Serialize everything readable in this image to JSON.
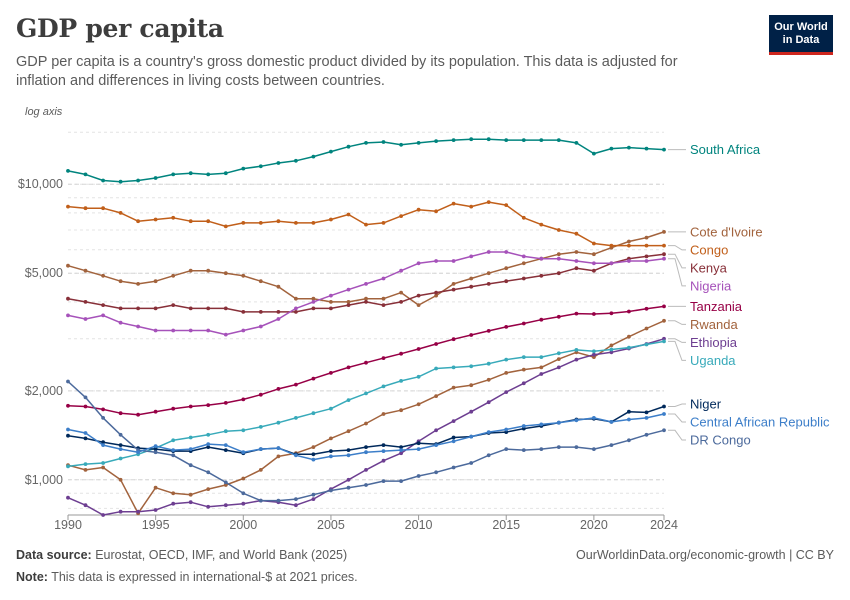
{
  "header": {
    "title": "GDP per capita",
    "subtitle": "GDP per capita is a country's gross domestic product divided by its population. This data is adjusted for inflation and differences in living costs between countries.",
    "logo_line1": "Our World",
    "logo_line2": "in Data"
  },
  "footer": {
    "source_label": "Data source:",
    "source_text": "Eurostat, OECD, IMF, and World Bank (2025)",
    "link_text": "OurWorldinData.org/economic-growth | CC BY",
    "note_label": "Note:",
    "note_text": "This data is expressed in international-$ at 2021 prices."
  },
  "chart_data": {
    "type": "line",
    "scale": "log",
    "axis_note": "log axis",
    "xlim": [
      1990,
      2024
    ],
    "ylim": [
      760,
      15500
    ],
    "x_ticks": [
      1990,
      1995,
      2000,
      2005,
      2010,
      2015,
      2020,
      2024
    ],
    "y_ticks": [
      {
        "value": 1000,
        "label": "$1,000"
      },
      {
        "value": 2000,
        "label": "$2,000"
      },
      {
        "value": 5000,
        "label": "$5,000"
      },
      {
        "value": 10000,
        "label": "$10,000"
      }
    ],
    "grid": true,
    "legend": "right",
    "series": [
      {
        "name": "South Africa",
        "color": "#00847e",
        "values": [
          11100,
          10800,
          10300,
          10200,
          10300,
          10500,
          10800,
          10900,
          10800,
          10900,
          11300,
          11500,
          11800,
          12000,
          12400,
          12900,
          13400,
          13800,
          13900,
          13600,
          13800,
          14000,
          14100,
          14200,
          14200,
          14100,
          14100,
          14100,
          14100,
          13800,
          12700,
          13200,
          13300,
          13200,
          13100
        ]
      },
      {
        "name": "Cote d'Ivoire",
        "color": "#a2633d",
        "values": [
          5300,
          5100,
          4900,
          4700,
          4600,
          4700,
          4900,
          5100,
          5100,
          5000,
          4900,
          4700,
          4500,
          4100,
          4100,
          4000,
          4000,
          4100,
          4100,
          4300,
          3900,
          4200,
          4600,
          4800,
          5000,
          5200,
          5400,
          5600,
          5800,
          5900,
          5800,
          6100,
          6400,
          6600,
          6900
        ]
      },
      {
        "name": "Congo",
        "color": "#c15f1a",
        "values": [
          8400,
          8300,
          8300,
          8000,
          7500,
          7600,
          7700,
          7500,
          7500,
          7200,
          7400,
          7400,
          7500,
          7400,
          7400,
          7600,
          7900,
          7300,
          7400,
          7800,
          8200,
          8100,
          8600,
          8400,
          8700,
          8500,
          7700,
          7300,
          7000,
          6800,
          6300,
          6200,
          6200,
          6200,
          6200
        ]
      },
      {
        "name": "Kenya",
        "color": "#883039",
        "values": [
          4100,
          4000,
          3900,
          3800,
          3800,
          3800,
          3900,
          3800,
          3800,
          3800,
          3700,
          3700,
          3700,
          3700,
          3800,
          3800,
          3900,
          4000,
          3900,
          4000,
          4200,
          4300,
          4400,
          4500,
          4600,
          4700,
          4800,
          4900,
          5000,
          5200,
          5100,
          5400,
          5600,
          5700,
          5800
        ]
      },
      {
        "name": "Nigeria",
        "color": "#a652ba",
        "values": [
          3600,
          3500,
          3600,
          3400,
          3300,
          3200,
          3200,
          3200,
          3200,
          3100,
          3200,
          3300,
          3500,
          3800,
          4000,
          4200,
          4400,
          4600,
          4800,
          5100,
          5400,
          5500,
          5500,
          5700,
          5900,
          5900,
          5700,
          5600,
          5600,
          5500,
          5400,
          5400,
          5500,
          5500,
          5600
        ]
      },
      {
        "name": "Tanzania",
        "color": "#970046",
        "values": [
          1780,
          1770,
          1730,
          1680,
          1660,
          1700,
          1740,
          1770,
          1790,
          1820,
          1870,
          1940,
          2030,
          2100,
          2200,
          2300,
          2400,
          2490,
          2580,
          2670,
          2770,
          2880,
          2990,
          3090,
          3190,
          3290,
          3380,
          3480,
          3560,
          3650,
          3640,
          3660,
          3710,
          3790,
          3860
        ]
      },
      {
        "name": "Rwanda",
        "color": "#a2633d",
        "values": [
          1120,
          1080,
          1100,
          1000,
          770,
          940,
          900,
          890,
          930,
          960,
          1010,
          1080,
          1200,
          1230,
          1290,
          1380,
          1460,
          1550,
          1670,
          1720,
          1800,
          1920,
          2050,
          2090,
          2180,
          2300,
          2360,
          2400,
          2560,
          2700,
          2600,
          2850,
          3050,
          3250,
          3450
        ]
      },
      {
        "name": "Ethiopia",
        "color": "#6d3e91",
        "values": [
          870,
          820,
          760,
          780,
          780,
          790,
          830,
          840,
          810,
          820,
          830,
          850,
          840,
          820,
          860,
          930,
          1000,
          1080,
          1160,
          1230,
          1350,
          1470,
          1580,
          1700,
          1830,
          1980,
          2120,
          2280,
          2400,
          2550,
          2650,
          2700,
          2780,
          2880,
          3000
        ]
      },
      {
        "name": "Uganda",
        "color": "#38aaba",
        "values": [
          1110,
          1130,
          1140,
          1180,
          1220,
          1280,
          1360,
          1390,
          1420,
          1460,
          1470,
          1510,
          1560,
          1620,
          1680,
          1740,
          1860,
          1960,
          2070,
          2160,
          2230,
          2380,
          2400,
          2420,
          2470,
          2550,
          2600,
          2600,
          2680,
          2750,
          2720,
          2760,
          2800,
          2870,
          2940
        ]
      },
      {
        "name": "Niger",
        "color": "#00295b",
        "values": [
          1410,
          1380,
          1340,
          1310,
          1280,
          1270,
          1250,
          1250,
          1290,
          1260,
          1230,
          1270,
          1280,
          1220,
          1220,
          1250,
          1260,
          1290,
          1310,
          1290,
          1330,
          1320,
          1390,
          1400,
          1440,
          1450,
          1490,
          1520,
          1560,
          1600,
          1610,
          1570,
          1700,
          1690,
          1770
        ]
      },
      {
        "name": "DR Congo",
        "color": "#4c6a9c",
        "values": [
          2150,
          1900,
          1620,
          1420,
          1260,
          1240,
          1210,
          1120,
          1060,
          980,
          900,
          850,
          850,
          860,
          890,
          920,
          940,
          960,
          990,
          990,
          1030,
          1060,
          1100,
          1140,
          1210,
          1270,
          1260,
          1270,
          1290,
          1290,
          1270,
          1310,
          1360,
          1420,
          1470
        ]
      },
      {
        "name": "Central African Republic",
        "color": "#3c7ec9",
        "values": [
          1480,
          1440,
          1310,
          1270,
          1240,
          1300,
          1260,
          1270,
          1320,
          1310,
          1240,
          1270,
          1280,
          1210,
          1170,
          1200,
          1210,
          1240,
          1250,
          1260,
          1270,
          1310,
          1350,
          1400,
          1450,
          1480,
          1520,
          1540,
          1560,
          1590,
          1620,
          1570,
          1600,
          1620,
          1670
        ]
      }
    ]
  }
}
